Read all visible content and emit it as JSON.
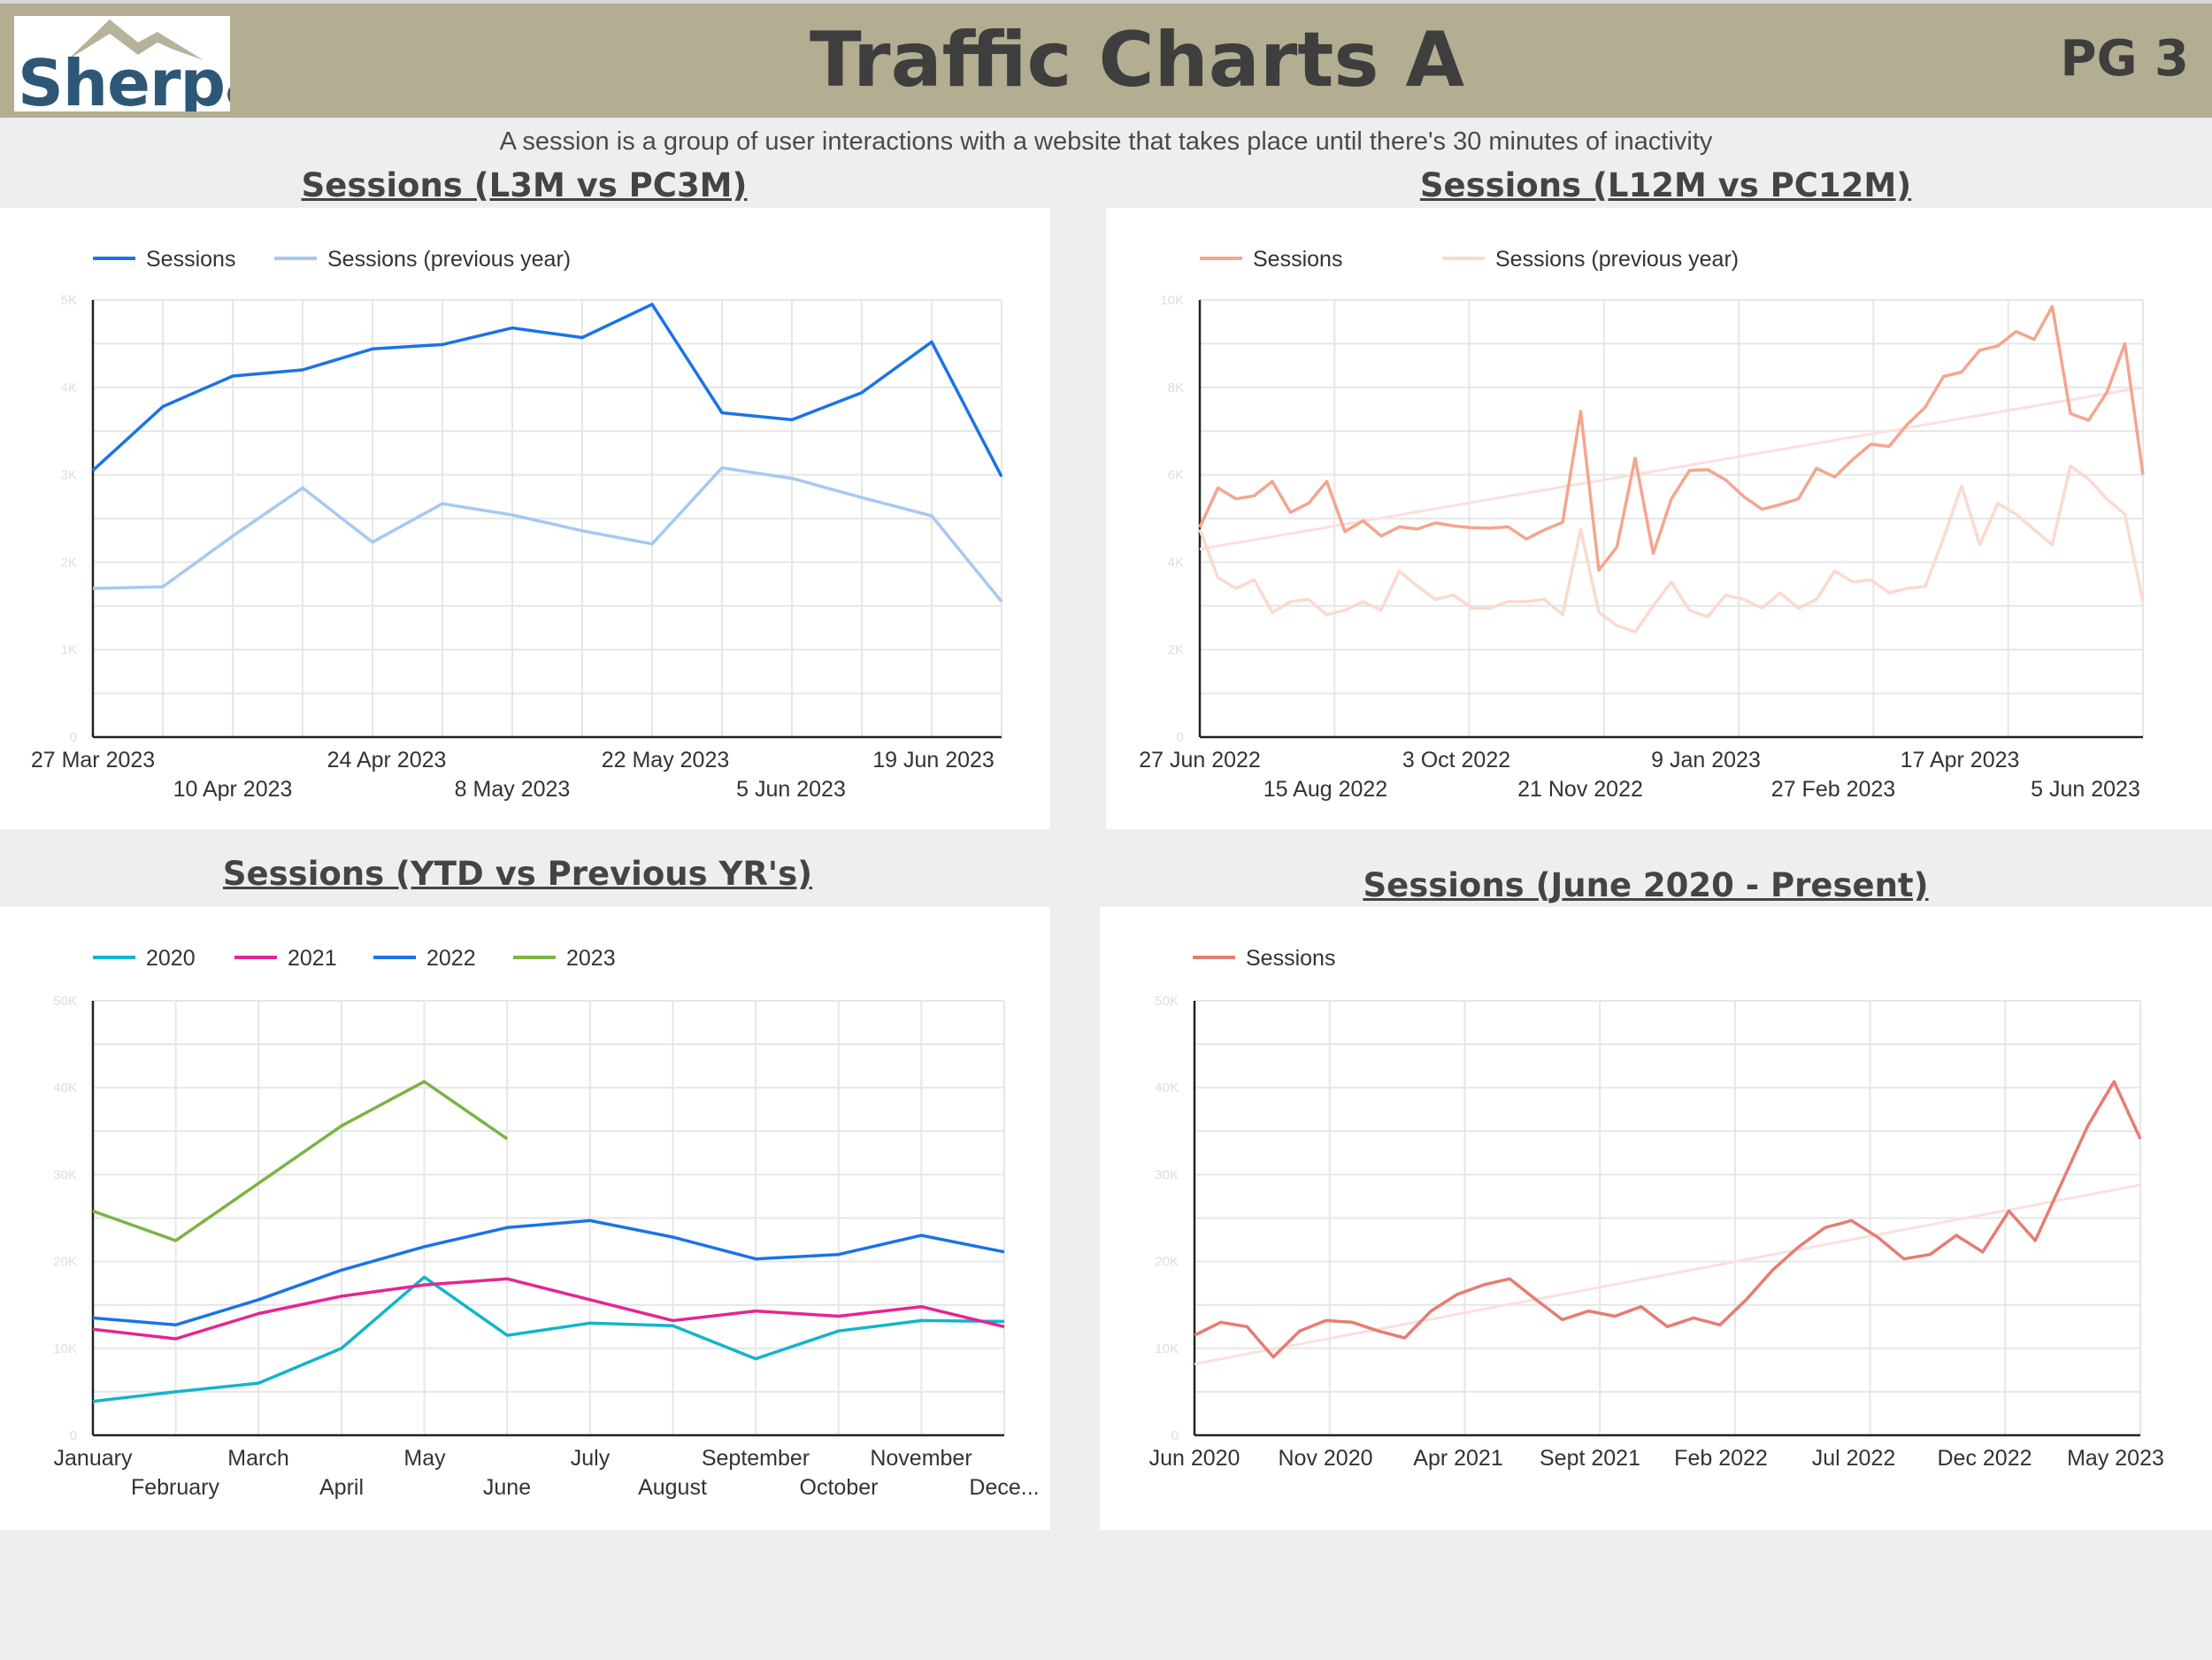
{
  "header": {
    "logo_text": "Sherpa",
    "title": "Traffic Charts A",
    "page": "PG 3",
    "bg_color": "#b3ad91"
  },
  "subtitle": "A session is a group of user interactions with a website that takes place until there's 30 minutes of inactivity",
  "chart_data": [
    {
      "id": "l3m",
      "type": "line",
      "title": "Sessions (L3M vs PC3M)",
      "ylim": [
        0,
        5000
      ],
      "yticks": [
        "0",
        "1K",
        "2K",
        "3K",
        "4K",
        "5K"
      ],
      "x_labels_row1": [
        "27 Mar 2023",
        "24 Apr 2023",
        "22 May 2023",
        "19 Jun 2023"
      ],
      "x_labels_row2": [
        "10 Apr 2023",
        "8 May 2023",
        "5 Jun 2023"
      ],
      "legend_placement": "top-left",
      "grid": true,
      "series": [
        {
          "name": "Sessions",
          "color": "#1a73e8",
          "values": [
            3050,
            3780,
            4130,
            4200,
            4440,
            4490,
            4680,
            4570,
            4950,
            3710,
            3630,
            3940,
            4520,
            2980
          ]
        },
        {
          "name": "Sessions (previous year)",
          "color": "#a6c8f3",
          "values": [
            1700,
            1720,
            2300,
            2850,
            2230,
            2670,
            2540,
            2360,
            2210,
            3080,
            2960,
            2740,
            2530,
            1550
          ]
        }
      ]
    },
    {
      "id": "l12m",
      "type": "line",
      "title": "Sessions (L12M vs PC12M)",
      "ylim": [
        0,
        10000
      ],
      "yticks": [
        "0",
        "2K",
        "4K",
        "6K",
        "8K",
        "10K"
      ],
      "x_labels_row1": [
        "27 Jun 2022",
        "3 Oct 2022",
        "9 Jan 2023",
        "17 Apr 2023"
      ],
      "x_labels_row2": [
        "15 Aug 2022",
        "21 Nov 2022",
        "27 Feb 2023",
        "5 Jun 2023"
      ],
      "legend_placement": "top-left",
      "grid": true,
      "trendline": [
        4300,
        8000
      ],
      "series": [
        {
          "name": "Sessions",
          "color": "#f4a58e",
          "values": [
            4800,
            5700,
            5450,
            5520,
            5850,
            5140,
            5350,
            5850,
            4700,
            4950,
            4600,
            4810,
            4760,
            4900,
            4830,
            4790,
            4780,
            4810,
            4530,
            4740,
            4910,
            7450,
            3820,
            4350,
            6380,
            4200,
            5450,
            6100,
            6120,
            5880,
            5500,
            5210,
            5320,
            5450,
            6150,
            5950,
            6350,
            6700,
            6650,
            7150,
            7550,
            8250,
            8350,
            8850,
            8950,
            9280,
            9100,
            9850,
            7400,
            7250,
            7880,
            9000,
            6000
          ]
        },
        {
          "name": "Sessions (previous year)",
          "color": "#fcd9cf",
          "values": [
            4750,
            3650,
            3400,
            3600,
            2850,
            3100,
            3150,
            2800,
            2900,
            3100,
            2900,
            3800,
            3450,
            3150,
            3250,
            2950,
            2950,
            3100,
            3100,
            3150,
            2800,
            4750,
            2850,
            2550,
            2400,
            3000,
            3550,
            2900,
            2750,
            3250,
            3150,
            2950,
            3300,
            2950,
            3150,
            3800,
            3550,
            3600,
            3300,
            3400,
            3450,
            4550,
            5750,
            4400,
            5350,
            5100,
            4750,
            4400,
            6200,
            5900,
            5450,
            5100,
            3100
          ]
        }
      ]
    },
    {
      "id": "ytd",
      "type": "line",
      "title": "Sessions (YTD vs Previous YR's)",
      "ylim": [
        0,
        50000
      ],
      "yticks": [
        "0",
        "10K",
        "20K",
        "30K",
        "40K",
        "50K"
      ],
      "x_labels_row1": [
        "January",
        "March",
        "May",
        "July",
        "September",
        "November"
      ],
      "x_labels_row2": [
        "February",
        "April",
        "June",
        "August",
        "October",
        "Dece..."
      ],
      "legend_placement": "top-left",
      "grid": true,
      "series": [
        {
          "name": "2020",
          "color": "#12b5cb",
          "values": [
            3900,
            5000,
            6000,
            10000,
            18200,
            11500,
            12900,
            12600,
            8800,
            12000,
            13200,
            13100
          ]
        },
        {
          "name": "2021",
          "color": "#e52592",
          "values": [
            12200,
            11100,
            14000,
            16000,
            17300,
            18000,
            15600,
            13200,
            14300,
            13700,
            14800,
            12500
          ]
        },
        {
          "name": "2022",
          "color": "#1a73e8",
          "values": [
            13500,
            12700,
            15600,
            19000,
            21700,
            23900,
            24700,
            22800,
            20300,
            20800,
            23000,
            21100
          ]
        },
        {
          "name": "2023",
          "color": "#7cb342",
          "values": [
            25800,
            22400,
            29000,
            35600,
            40700,
            34100
          ]
        }
      ]
    },
    {
      "id": "allTime",
      "type": "line",
      "title": "Sessions (June 2020 - Present)",
      "ylim": [
        0,
        50000
      ],
      "yticks": [
        "0",
        "10K",
        "20K",
        "30K",
        "40K",
        "50K"
      ],
      "x_labels_row1": [
        "Jun 2020",
        "Nov 2020",
        "Apr 2021",
        "Sept 2021",
        "Feb 2022",
        "Jul 2022",
        "Dec 2022",
        "May 2023"
      ],
      "legend_placement": "top-left",
      "grid": true,
      "trendline": [
        8200,
        28800
      ],
      "series": [
        {
          "name": "Sessions",
          "color": "#e67c73",
          "values": [
            11500,
            13000,
            12500,
            9000,
            12000,
            13200,
            13000,
            12000,
            11200,
            14300,
            16200,
            17300,
            18000,
            15600,
            13300,
            14300,
            13700,
            14800,
            12500,
            13500,
            12700,
            15600,
            19000,
            21700,
            23900,
            24700,
            22800,
            20300,
            20800,
            23000,
            21100,
            25800,
            22400,
            29000,
            35600,
            40700,
            34100
          ]
        }
      ]
    }
  ]
}
